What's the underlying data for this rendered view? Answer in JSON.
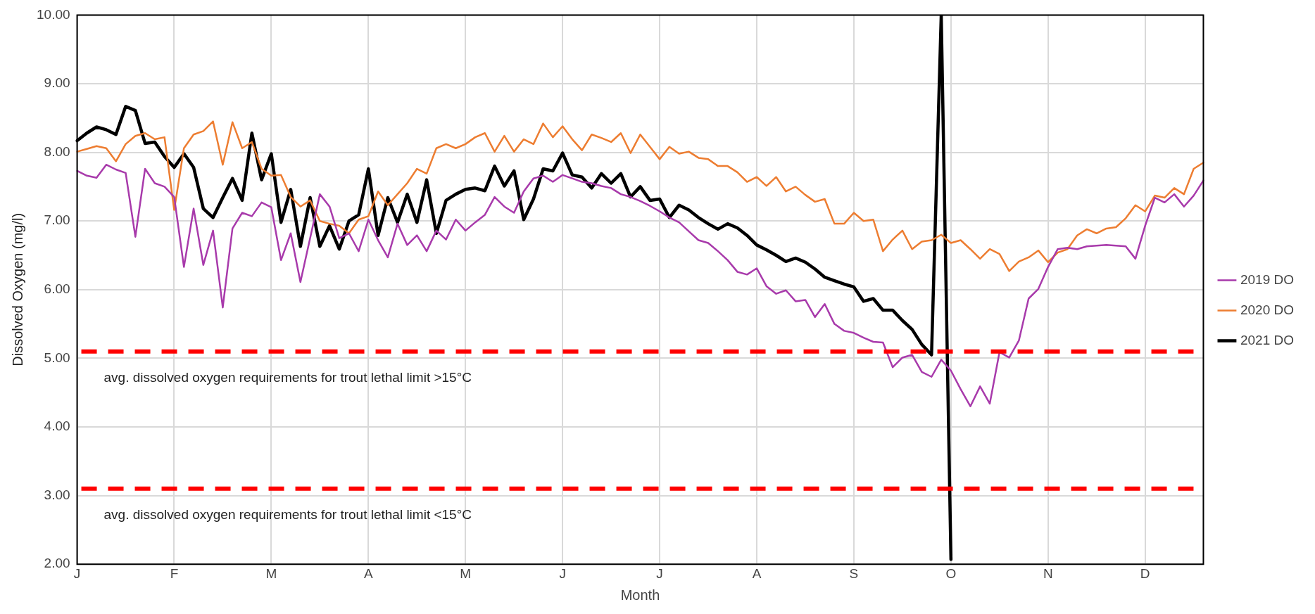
{
  "chart_data": {
    "type": "line",
    "xlabel": "Month",
    "ylabel": "Dissolved Oxygen (mg/l)",
    "categories": [
      "J",
      null,
      null,
      null,
      null,
      null,
      null,
      null,
      null,
      null,
      "F",
      null,
      null,
      null,
      null,
      null,
      null,
      null,
      null,
      null,
      "M",
      null,
      null,
      null,
      null,
      null,
      null,
      null,
      null,
      null,
      "A",
      null,
      null,
      null,
      null,
      null,
      null,
      null,
      null,
      null,
      "M",
      null,
      null,
      null,
      null,
      null,
      null,
      null,
      null,
      null,
      "J",
      null,
      null,
      null,
      null,
      null,
      null,
      null,
      null,
      null,
      "J",
      null,
      null,
      null,
      null,
      null,
      null,
      null,
      null,
      null,
      "A",
      null,
      null,
      null,
      null,
      null,
      null,
      null,
      null,
      null,
      "S",
      null,
      null,
      null,
      null,
      null,
      null,
      null,
      null,
      null,
      "O",
      null,
      null,
      null,
      null,
      null,
      null,
      null,
      null,
      null,
      "N",
      null,
      null,
      null,
      null,
      null,
      null,
      null,
      null,
      null,
      "D",
      null,
      null,
      null,
      null,
      null,
      null
    ],
    "ylim": [
      2,
      10
    ],
    "yticks": [
      {
        "value": 2,
        "label": "2.00"
      },
      {
        "value": 3,
        "label": "3.00"
      },
      {
        "value": 4,
        "label": "4.00"
      },
      {
        "value": 5,
        "label": "5.00"
      },
      {
        "value": 6,
        "label": "6.00"
      },
      {
        "value": 7,
        "label": "7.00"
      },
      {
        "value": 8,
        "label": "8.00"
      },
      {
        "value": 9,
        "label": "9.00"
      },
      {
        "value": 10,
        "label": "10.00"
      }
    ],
    "grid": true,
    "legend": "right",
    "marker": "none",
    "line_style": "solid",
    "ref_lines": [
      {
        "axis": "y",
        "value": 5.1,
        "label": "avg. dissolved oxygen requirements for trout lethal limit >15°C",
        "color": "#ff0000",
        "line_style": "dashed"
      },
      {
        "axis": "y",
        "value": 3.1,
        "label": "avg. dissolved oxygen requirements for trout lethal limit <15°C",
        "color": "#ff0000",
        "line_style": "dashed"
      }
    ],
    "series": [
      {
        "name": "2019 DO",
        "color": "#a83aab",
        "values": [
          7.73,
          7.66,
          7.63,
          7.82,
          7.75,
          7.7,
          6.77,
          7.76,
          7.55,
          7.5,
          7.35,
          6.33,
          7.18,
          6.36,
          6.86,
          5.74,
          6.89,
          7.12,
          7.07,
          7.27,
          7.2,
          6.43,
          6.82,
          6.11,
          6.75,
          7.39,
          7.21,
          6.75,
          6.82,
          6.56,
          7.02,
          6.72,
          6.47,
          6.96,
          6.65,
          6.79,
          6.56,
          6.86,
          6.73,
          7.02,
          6.86,
          6.98,
          7.09,
          7.35,
          7.21,
          7.12,
          7.43,
          7.62,
          7.66,
          7.57,
          7.67,
          7.62,
          7.57,
          7.55,
          7.51,
          7.48,
          7.39,
          7.35,
          7.29,
          7.22,
          7.14,
          7.05,
          6.98,
          6.85,
          6.72,
          6.68,
          6.56,
          6.43,
          6.26,
          6.22,
          6.31,
          6.05,
          5.94,
          5.99,
          5.83,
          5.85,
          5.6,
          5.79,
          5.5,
          5.4,
          5.37,
          5.3,
          5.24,
          5.23,
          4.87,
          5.01,
          5.05,
          4.8,
          4.73,
          4.98,
          4.82,
          4.55,
          4.3,
          4.59,
          4.34,
          5.09,
          5.01,
          5.26,
          5.87,
          6.01,
          6.33,
          6.59,
          6.61,
          6.59,
          6.63,
          6.64,
          6.65,
          6.64,
          6.63,
          6.45,
          6.93,
          7.34,
          7.27,
          7.39,
          7.21,
          7.37,
          7.59
        ]
      },
      {
        "name": "2020 DO",
        "color": "#ed7d31",
        "values": [
          8.01,
          8.05,
          8.09,
          8.06,
          7.87,
          8.12,
          8.24,
          8.28,
          8.19,
          8.22,
          7.16,
          8.06,
          8.26,
          8.31,
          8.45,
          7.82,
          8.44,
          8.06,
          8.15,
          7.76,
          7.66,
          7.67,
          7.35,
          7.21,
          7.3,
          7.0,
          6.96,
          6.93,
          6.82,
          7.02,
          7.07,
          7.43,
          7.23,
          7.39,
          7.55,
          7.76,
          7.69,
          8.06,
          8.12,
          8.06,
          8.12,
          8.22,
          8.28,
          8.01,
          8.24,
          8.01,
          8.19,
          8.12,
          8.42,
          8.22,
          8.38,
          8.19,
          8.03,
          8.26,
          8.21,
          8.15,
          8.28,
          7.99,
          8.26,
          8.08,
          7.9,
          8.08,
          7.98,
          8.01,
          7.92,
          7.9,
          7.8,
          7.8,
          7.71,
          7.57,
          7.64,
          7.51,
          7.64,
          7.43,
          7.5,
          7.38,
          7.28,
          7.32,
          6.96,
          6.96,
          7.12,
          7.0,
          7.02,
          6.56,
          6.73,
          6.86,
          6.59,
          6.7,
          6.72,
          6.8,
          6.68,
          6.72,
          6.59,
          6.45,
          6.59,
          6.52,
          6.27,
          6.41,
          6.47,
          6.57,
          6.4,
          6.54,
          6.59,
          6.79,
          6.88,
          6.82,
          6.89,
          6.91,
          7.04,
          7.23,
          7.14,
          7.37,
          7.34,
          7.48,
          7.39,
          7.76,
          7.85
        ]
      },
      {
        "name": "2021 DO",
        "color": "#000000",
        "values": [
          8.17,
          8.28,
          8.37,
          8.33,
          8.26,
          8.67,
          8.61,
          8.13,
          8.15,
          7.94,
          7.78,
          7.98,
          7.78,
          7.18,
          7.05,
          7.34,
          7.62,
          7.3,
          8.28,
          7.6,
          7.98,
          6.98,
          7.46,
          6.63,
          7.34,
          6.63,
          6.93,
          6.59,
          7.0,
          7.09,
          7.76,
          6.79,
          7.34,
          6.98,
          7.39,
          6.98,
          7.6,
          6.82,
          7.3,
          7.39,
          7.46,
          7.48,
          7.44,
          7.8,
          7.51,
          7.73,
          7.02,
          7.32,
          7.76,
          7.73,
          7.99,
          7.67,
          7.64,
          7.48,
          7.69,
          7.55,
          7.69,
          7.35,
          7.5,
          7.3,
          7.32,
          7.05,
          7.23,
          7.16,
          7.05,
          6.96,
          6.88,
          6.96,
          6.9,
          6.79,
          6.65,
          6.58,
          6.5,
          6.41,
          6.46,
          6.4,
          6.3,
          6.18,
          6.13,
          6.08,
          6.04,
          5.83,
          5.87,
          5.7,
          5.7,
          5.55,
          5.42,
          5.2,
          5.05,
          10.0,
          2.07,
          null,
          null,
          null,
          null,
          null,
          null,
          null,
          null,
          null,
          null,
          null,
          null,
          null,
          null,
          null,
          null,
          null,
          null,
          null,
          null,
          null,
          null,
          null,
          null,
          null,
          null
        ]
      }
    ]
  }
}
